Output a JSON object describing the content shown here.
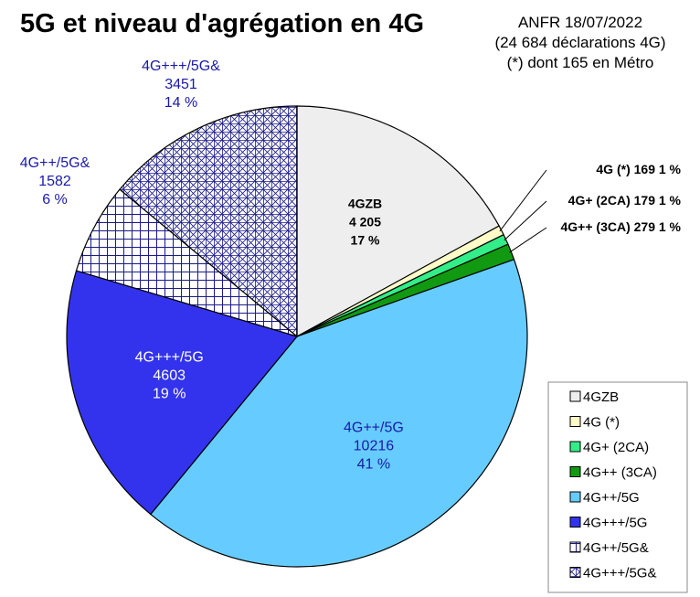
{
  "title": "5G et niveau d'agrégation en 4G",
  "source": {
    "line1": "ANFR 18/07/2022",
    "line2": "(24 684 déclarations 4G)",
    "line3": "(*) dont 165 en Métro"
  },
  "chart_data": {
    "type": "pie",
    "title": "5G et niveau d'agrégation en 4G",
    "legend_position": "bottom-right",
    "slices": [
      {
        "name": "4GZB",
        "value": 4205,
        "percent": 17,
        "color": "#eeeeee",
        "pattern": "none",
        "label_lines": [
          "4GZB",
          "4 205",
          "17 %"
        ],
        "label_color": "#000000"
      },
      {
        "name": "4G (*)",
        "value": 169,
        "percent": 1,
        "color": "#fffcc8",
        "pattern": "none",
        "label_lines": [
          "4G (*) 169 1 %"
        ],
        "label_color": "#000000"
      },
      {
        "name": "4G+ (2CA)",
        "value": 179,
        "percent": 1,
        "color": "#33ee88",
        "pattern": "none",
        "label_lines": [
          "4G+ (2CA) 179 1 %"
        ],
        "label_color": "#000000"
      },
      {
        "name": "4G++ (3CA)",
        "value": 279,
        "percent": 1,
        "color": "#119911",
        "pattern": "none",
        "label_lines": [
          "4G++ (3CA) 279 1 %"
        ],
        "label_color": "#000000"
      },
      {
        "name": "4G++/5G",
        "value": 10216,
        "percent": 41,
        "color": "#66ccff",
        "pattern": "none",
        "label_lines": [
          "4G++/5G",
          "10216",
          "41 %"
        ],
        "label_color": "#1a1aa8"
      },
      {
        "name": "4G+++/5G",
        "value": 4603,
        "percent": 19,
        "color": "#3333ee",
        "pattern": "none",
        "label_lines": [
          "4G+++/5G",
          "4603",
          "19 %"
        ],
        "label_color": "#ffffff"
      },
      {
        "name": "4G++/5G&",
        "value": 1582,
        "percent": 6,
        "color": "#ffffff",
        "pattern": "grid",
        "label_lines": [
          "4G++/5G&",
          "1582",
          "6 %"
        ],
        "label_color": "#1a1aa8"
      },
      {
        "name": "4G+++/5G&",
        "value": 3451,
        "percent": 14,
        "color": "#ffffff",
        "pattern": "crosshatch",
        "label_lines": [
          "4G+++/5G&",
          "3451",
          "14 %"
        ],
        "label_color": "#1a1aa8"
      }
    ]
  }
}
